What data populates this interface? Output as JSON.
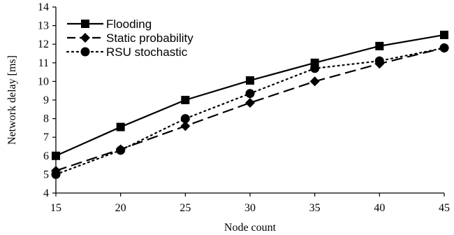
{
  "chart_data": {
    "type": "line",
    "xlabel": "Node count",
    "ylabel": "Network delay [ms]",
    "x": [
      15,
      20,
      25,
      30,
      35,
      40,
      45
    ],
    "xlim": [
      15,
      45
    ],
    "ylim": [
      4,
      14
    ],
    "yticks": [
      4,
      5,
      6,
      7,
      8,
      9,
      10,
      11,
      12,
      13,
      14
    ],
    "grid": false,
    "legend_position": "top-left",
    "series": [
      {
        "name": "Flooding",
        "marker": "square",
        "line": "solid",
        "color": "#000000",
        "values": [
          6.0,
          7.55,
          9.0,
          10.05,
          11.0,
          11.9,
          12.5
        ]
      },
      {
        "name": "Static probability",
        "marker": "diamond",
        "line": "dashed",
        "color": "#000000",
        "values": [
          5.2,
          6.35,
          7.6,
          8.85,
          10.0,
          10.95,
          11.8
        ]
      },
      {
        "name": "RSU stochastic",
        "marker": "circle",
        "line": "dotted",
        "color": "#000000",
        "values": [
          5.0,
          6.3,
          8.0,
          9.35,
          10.7,
          11.1,
          11.8
        ]
      }
    ]
  }
}
